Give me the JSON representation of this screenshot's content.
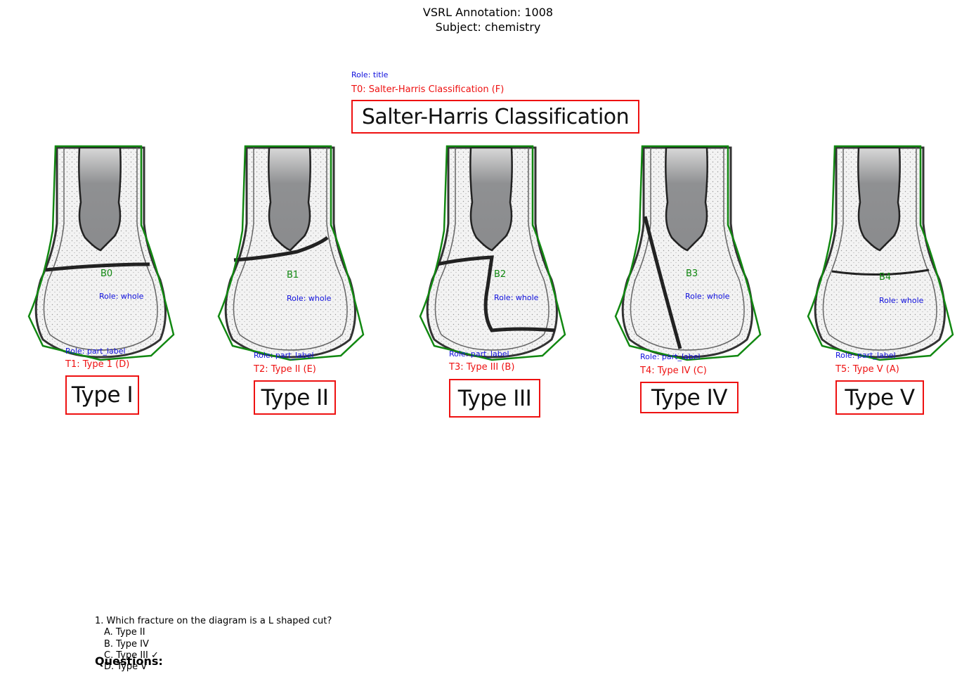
{
  "header": {
    "line1": "VSRL Annotation: 1008",
    "line2": "Subject: chemistry"
  },
  "colors": {
    "text_box": "#ee1111",
    "blob": "#118811",
    "role": "#1010dd"
  },
  "title": {
    "role": "Role: title",
    "label": "T0: Salter-Harris Classification (F)",
    "text": "Salter-Harris Classification"
  },
  "panels": [
    {
      "blob": "B0",
      "blob_role": "Role: whole",
      "text_role": "Role: part_label",
      "text_label": "T1: Type 1 (D)",
      "text": "Type I"
    },
    {
      "blob": "B1",
      "blob_role": "Role: whole",
      "text_role": "Role: part_label",
      "text_label": "T2: Type II (E)",
      "text": "Type II"
    },
    {
      "blob": "B2",
      "blob_role": "Role: whole",
      "text_role": "Role: part_label",
      "text_label": "T3: Type III (B)",
      "text": "Type III"
    },
    {
      "blob": "B3",
      "blob_role": "Role: whole",
      "text_role": "Role: part_label",
      "text_label": "T4: Type IV (C)",
      "text": "Type IV"
    },
    {
      "blob": "B4",
      "blob_role": "Role: whole",
      "text_role": "Role: part_label",
      "text_label": "T5: Type V (A)",
      "text": "Type V"
    }
  ],
  "questions": {
    "heading": "Questions:",
    "items": [
      {
        "text": "1. Which fracture on the diagram is a L shaped cut?",
        "options": [
          "A. Type II",
          "B. Type IV",
          "C. Type III ✓",
          "D. Type V"
        ]
      }
    ]
  }
}
